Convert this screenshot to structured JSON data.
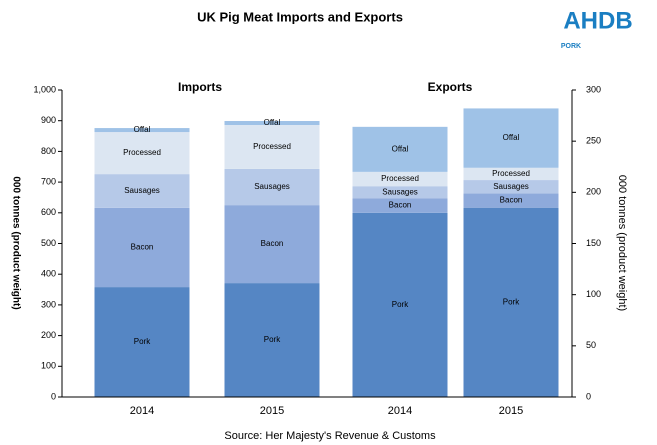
{
  "chart_data": {
    "type": "stacked_bar",
    "title": "UK Pig Meat Imports and Exports",
    "logo": {
      "text": "AHDB",
      "sub": "PORK"
    },
    "source": "Source: Her Majesty's Revenue & Customs",
    "annotations": [
      "Imports",
      "Exports"
    ],
    "ylabel": "000 tonnes (product weight)",
    "y2label": "000 tonnes (product weight)",
    "categories": [
      "2014",
      "2015",
      "2014",
      "2015"
    ],
    "series": [
      {
        "name": "Pork",
        "color": "#5586c4",
        "axis": "y",
        "values": [
          358,
          371,
          null,
          null
        ]
      },
      {
        "name": "Bacon",
        "color": "#8eaadb",
        "axis": "y",
        "values": [
          258,
          254,
          null,
          null
        ]
      },
      {
        "name": "Sausages",
        "color": "#b6c9e8",
        "axis": "y",
        "values": [
          110,
          118,
          null,
          null
        ]
      },
      {
        "name": "Processed",
        "color": "#dce6f2",
        "axis": "y",
        "values": [
          137,
          143,
          null,
          null
        ]
      },
      {
        "name": "Offal",
        "color": "#9fc2e7",
        "axis": "y",
        "values": [
          13,
          13,
          null,
          null
        ]
      },
      {
        "name": "Pork",
        "color": "#5586c4",
        "axis": "y2",
        "values": [
          null,
          null,
          180,
          185
        ]
      },
      {
        "name": "Bacon",
        "color": "#8eaadb",
        "axis": "y2",
        "values": [
          null,
          null,
          14,
          14
        ]
      },
      {
        "name": "Sausages",
        "color": "#b6c9e8",
        "axis": "y2",
        "values": [
          null,
          null,
          12,
          13
        ]
      },
      {
        "name": "Processed",
        "color": "#dce6f2",
        "axis": "y2",
        "values": [
          null,
          null,
          14,
          12
        ]
      },
      {
        "name": "Offal",
        "color": "#9fc2e7",
        "axis": "y2",
        "values": [
          null,
          null,
          44,
          58
        ]
      }
    ],
    "ylim": [
      0,
      1000
    ],
    "yticks": [
      0,
      100,
      200,
      300,
      400,
      500,
      600,
      700,
      800,
      900,
      {
        "value": 1000,
        "label": "1,000"
      }
    ],
    "y2lim": [
      0,
      300
    ],
    "y2ticks": [
      0,
      50,
      100,
      150,
      200,
      250,
      300
    ]
  }
}
